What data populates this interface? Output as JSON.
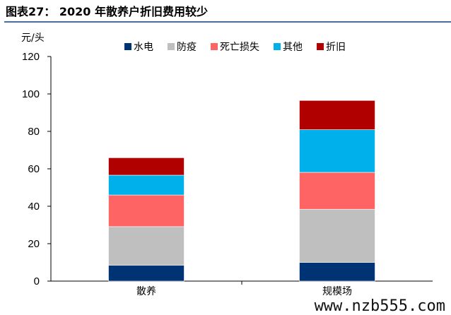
{
  "title": "图表27： 2020 年散养户折旧费用较少",
  "watermark": "www.nzb555.com",
  "chart_data": {
    "type": "bar",
    "stacked": true,
    "title": "图表27： 2020 年散养户折旧费用较少",
    "ylabel": "元/头",
    "xlabel": "",
    "ylim": [
      0,
      120
    ],
    "yticks": [
      0,
      20,
      40,
      60,
      80,
      100,
      120
    ],
    "categories": [
      "散养",
      "规模场"
    ],
    "legend_position": "top",
    "series": [
      {
        "name": "水电",
        "color": "#003373",
        "values": [
          8.5,
          10.0
        ]
      },
      {
        "name": "防疫",
        "color": "#bfbfbf",
        "values": [
          20.6,
          28.4
        ]
      },
      {
        "name": "死亡损失",
        "color": "#ff6464",
        "values": [
          16.9,
          19.7
        ]
      },
      {
        "name": "其他",
        "color": "#00b0ea",
        "values": [
          10.6,
          22.8
        ]
      },
      {
        "name": "折旧",
        "color": "#b00000",
        "values": [
          9.3,
          15.6
        ]
      }
    ]
  }
}
